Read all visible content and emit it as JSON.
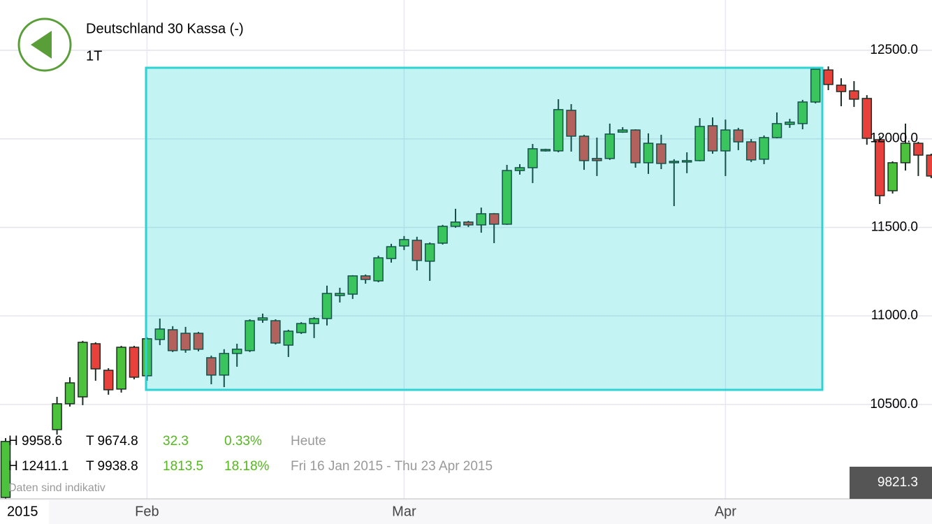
{
  "chart_data": {
    "type": "candlestick",
    "title": "Deutschland 30 Kassa (-)",
    "interval": "1T",
    "year": "2015",
    "categories": [
      null,
      null,
      null,
      null,
      null,
      null,
      null,
      null,
      null,
      null,
      null,
      "Feb",
      null,
      null,
      null,
      null,
      null,
      null,
      null,
      null,
      null,
      null,
      null,
      null,
      null,
      null,
      null,
      null,
      null,
      null,
      null,
      "Mar",
      null,
      null,
      null,
      null,
      null,
      null,
      null,
      null,
      null,
      null,
      null,
      null,
      null,
      null,
      null,
      null,
      null,
      null,
      null,
      null,
      null,
      null,
      null,
      null,
      "Apr",
      null,
      null,
      null,
      null,
      null,
      null,
      null,
      null,
      null,
      null,
      null,
      null,
      null,
      null,
      null,
      null
    ],
    "open": [
      9975,
      null,
      null,
      null,
      10358,
      10504,
      10543,
      10843,
      10693,
      10587,
      10823,
      10662,
      10867,
      10922,
      10902,
      10902,
      10764,
      10666,
      10788,
      10804,
      10977,
      10973,
      10835,
      10906,
      10957,
      10985,
      11115,
      11123,
      11226,
      11198,
      11324,
      11395,
      11427,
      11309,
      11411,
      11506,
      11530,
      11514,
      11577,
      11518,
      11821,
      11837,
      11932,
      11932,
      12161,
      12015,
      11889,
      11889,
      12038,
      12050,
      11865,
      11971,
      11865,
      11869,
      11877,
      12074,
      11932,
      12050,
      11983,
      11885,
      12007,
      12082,
      12086,
      12208,
      12389,
      12303,
      12271,
      12228,
      11995,
      11707,
      11865,
      11975,
      11908
    ],
    "high": [
      10310,
      null,
      null,
      null,
      10543,
      10654,
      10859,
      10851,
      10705,
      10831,
      10831,
      10879,
      10985,
      10942,
      10938,
      10910,
      10776,
      10812,
      10843,
      10981,
      11013,
      10981,
      10922,
      10965,
      10993,
      11171,
      11159,
      11230,
      11234,
      11340,
      11407,
      11451,
      11447,
      11415,
      11514,
      11605,
      11537,
      11612,
      11581,
      11853,
      11857,
      11971,
      11944,
      12224,
      12196,
      12023,
      12007,
      12086,
      12066,
      12054,
      12031,
      12023,
      11885,
      11924,
      12117,
      12121,
      12109,
      12062,
      11999,
      12019,
      12149,
      12113,
      12220,
      12397,
      12409,
      12342,
      12326,
      12247,
      12015,
      11873,
      12086,
      11983,
      11916
    ],
    "low": [
      9967,
      null,
      null,
      null,
      10330,
      10488,
      10496,
      10634,
      10555,
      10567,
      10642,
      10634,
      10835,
      10796,
      10792,
      10800,
      10614,
      10598,
      10713,
      10796,
      10961,
      10839,
      10768,
      10898,
      10875,
      10946,
      11076,
      11096,
      11182,
      11190,
      11301,
      11372,
      11257,
      11198,
      11403,
      11498,
      11502,
      11470,
      11411,
      11514,
      11798,
      11750,
      11928,
      11924,
      11928,
      11825,
      11790,
      11881,
      12034,
      11837,
      11802,
      11829,
      11620,
      11806,
      11873,
      11916,
      11790,
      11936,
      11869,
      11857,
      12003,
      12062,
      12054,
      12200,
      12275,
      12184,
      12180,
      11967,
      11632,
      11691,
      11821,
      11790,
      11778
    ],
    "close": [
      10291,
      null,
      null,
      null,
      10504,
      10622,
      10851,
      10701,
      10583,
      10823,
      10654,
      10871,
      10926,
      10804,
      10808,
      10812,
      10666,
      10788,
      10812,
      10973,
      10989,
      10847,
      10914,
      10957,
      10985,
      11127,
      11127,
      11226,
      11206,
      11328,
      11391,
      11431,
      11313,
      11407,
      11506,
      11530,
      11514,
      11577,
      11518,
      11821,
      11837,
      11944,
      11940,
      12165,
      12015,
      11877,
      11877,
      12027,
      12050,
      11865,
      11975,
      11861,
      11873,
      11877,
      12070,
      11932,
      12050,
      11983,
      11881,
      12007,
      12086,
      12094,
      12208,
      12393,
      12307,
      12267,
      12224,
      12003,
      11679,
      11865,
      11975,
      11908,
      11790
    ],
    "up_color": "#4cc23c",
    "down_color": "#e8413c",
    "ylim": [
      9967,
      12784
    ],
    "yticks": [
      {
        "value": 10500,
        "label": "10500.0"
      },
      {
        "value": 11000,
        "label": "11000.0"
      },
      {
        "value": 11500,
        "label": "11500.0"
      },
      {
        "value": 12000,
        "label": "12000.0"
      },
      {
        "value": 12500,
        "label": "12500.0"
      }
    ],
    "grid": true,
    "last_price": "9821.3",
    "info_rows": [
      [
        "H 9958.6",
        "T 9674.8",
        "32.3",
        "0.33%",
        "Heute"
      ],
      [
        "H 12411.1",
        "T 9938.8",
        "1813.5",
        "18.18%",
        "Fri 16 Jan 2015 - Thu 23 Apr 2015"
      ]
    ],
    "note": "Daten sind indikativ"
  }
}
